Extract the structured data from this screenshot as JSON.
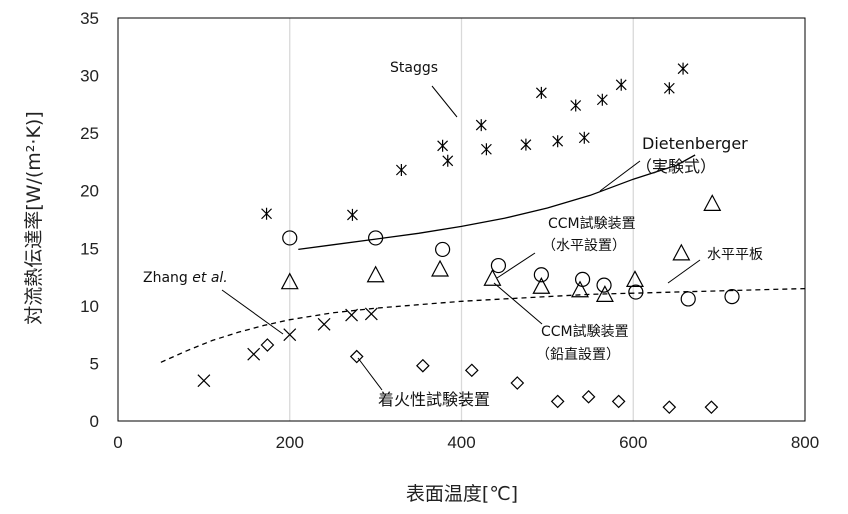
{
  "chart_data": {
    "type": "scatter",
    "xlabel": "表面温度[℃]",
    "ylabel": "対流熱伝達率[W/(m²·K)]",
    "xlim": [
      0,
      800
    ],
    "ylim": [
      0,
      35
    ],
    "xticks": [
      0,
      200,
      400,
      600,
      800
    ],
    "yticks": [
      0,
      5,
      10,
      15,
      20,
      25,
      30,
      35
    ],
    "grid": "vertical",
    "series": [
      {
        "name": "Staggs",
        "marker": "asterisk",
        "points": [
          [
            173,
            18.0
          ],
          [
            273,
            17.9
          ],
          [
            330,
            21.8
          ],
          [
            378,
            23.9
          ],
          [
            384,
            22.6
          ],
          [
            423,
            25.7
          ],
          [
            429,
            23.6
          ],
          [
            475,
            24.0
          ],
          [
            493,
            28.5
          ],
          [
            512,
            24.3
          ],
          [
            533,
            27.4
          ],
          [
            543,
            24.6
          ],
          [
            564,
            27.9
          ],
          [
            586,
            29.2
          ],
          [
            642,
            28.9
          ],
          [
            658,
            30.6
          ]
        ]
      },
      {
        "name": "CCM試験装置（水平設置）",
        "marker": "circle",
        "points": [
          [
            200,
            15.9
          ],
          [
            300,
            15.9
          ],
          [
            378,
            14.9
          ],
          [
            443,
            13.5
          ],
          [
            493,
            12.7
          ],
          [
            541,
            12.3
          ],
          [
            566,
            11.8
          ],
          [
            603,
            11.2
          ],
          [
            664,
            10.6
          ],
          [
            715,
            10.8
          ]
        ]
      },
      {
        "name": "水平平板",
        "marker": "triangle",
        "points": [
          [
            200,
            12.1
          ],
          [
            300,
            12.7
          ],
          [
            375,
            13.2
          ],
          [
            436,
            12.4
          ],
          [
            493,
            11.7
          ],
          [
            538,
            11.4
          ],
          [
            567,
            11.0
          ],
          [
            602,
            12.3
          ],
          [
            656,
            14.6
          ],
          [
            692,
            18.9
          ]
        ]
      },
      {
        "name": "CCM試験装置（鉛直設置）",
        "marker": "cross",
        "points": [
          [
            100,
            3.5
          ],
          [
            158,
            5.8
          ],
          [
            200,
            7.5
          ],
          [
            240,
            8.4
          ],
          [
            272,
            9.2
          ],
          [
            295,
            9.3
          ]
        ]
      },
      {
        "name": "着火性試験装置",
        "marker": "diamond",
        "points": [
          [
            174,
            6.6
          ],
          [
            278,
            5.6
          ],
          [
            355,
            4.8
          ],
          [
            412,
            4.4
          ],
          [
            465,
            3.3
          ],
          [
            512,
            1.7
          ],
          [
            548,
            2.1
          ],
          [
            583,
            1.7
          ],
          [
            642,
            1.2
          ],
          [
            691,
            1.2
          ]
        ]
      }
    ],
    "curves": [
      {
        "name": "Dietenberger（実験式）",
        "style": "solid",
        "points": [
          [
            210,
            14.9
          ],
          [
            250,
            15.3
          ],
          [
            300,
            15.8
          ],
          [
            350,
            16.3
          ],
          [
            400,
            16.9
          ],
          [
            450,
            17.6
          ],
          [
            500,
            18.5
          ],
          [
            550,
            19.6
          ],
          [
            600,
            21.0
          ],
          [
            650,
            22.2
          ],
          [
            672,
            23.1
          ]
        ]
      },
      {
        "name": "Zhang et al.",
        "style": "dashed",
        "points": [
          [
            50,
            5.1
          ],
          [
            80,
            6.1
          ],
          [
            110,
            7.0
          ],
          [
            140,
            7.7
          ],
          [
            170,
            8.3
          ],
          [
            200,
            8.8
          ],
          [
            250,
            9.4
          ],
          [
            300,
            9.8
          ],
          [
            350,
            10.1
          ],
          [
            400,
            10.4
          ],
          [
            450,
            10.6
          ],
          [
            500,
            10.8
          ],
          [
            550,
            11.0
          ],
          [
            600,
            11.1
          ],
          [
            650,
            11.2
          ],
          [
            700,
            11.3
          ],
          [
            750,
            11.4
          ],
          [
            800,
            11.5
          ]
        ]
      }
    ],
    "annotations": [
      {
        "id": "staggs",
        "text": "Staggs"
      },
      {
        "id": "dieten1",
        "text": "Dietenberger"
      },
      {
        "id": "dieten2",
        "text": "（実験式）"
      },
      {
        "id": "ccmh1",
        "text": "CCM試験装置"
      },
      {
        "id": "ccmh2",
        "text": "（水平設置）"
      },
      {
        "id": "suihei",
        "text": "水平平板"
      },
      {
        "id": "zhang_a",
        "text": "Zhang "
      },
      {
        "id": "zhang_b",
        "text": "et al."
      },
      {
        "id": "ccmv1",
        "text": "CCM試験装置"
      },
      {
        "id": "ccmv2",
        "text": "（鉛直設置）"
      },
      {
        "id": "chaku",
        "text": "着火性試験装置"
      }
    ]
  }
}
